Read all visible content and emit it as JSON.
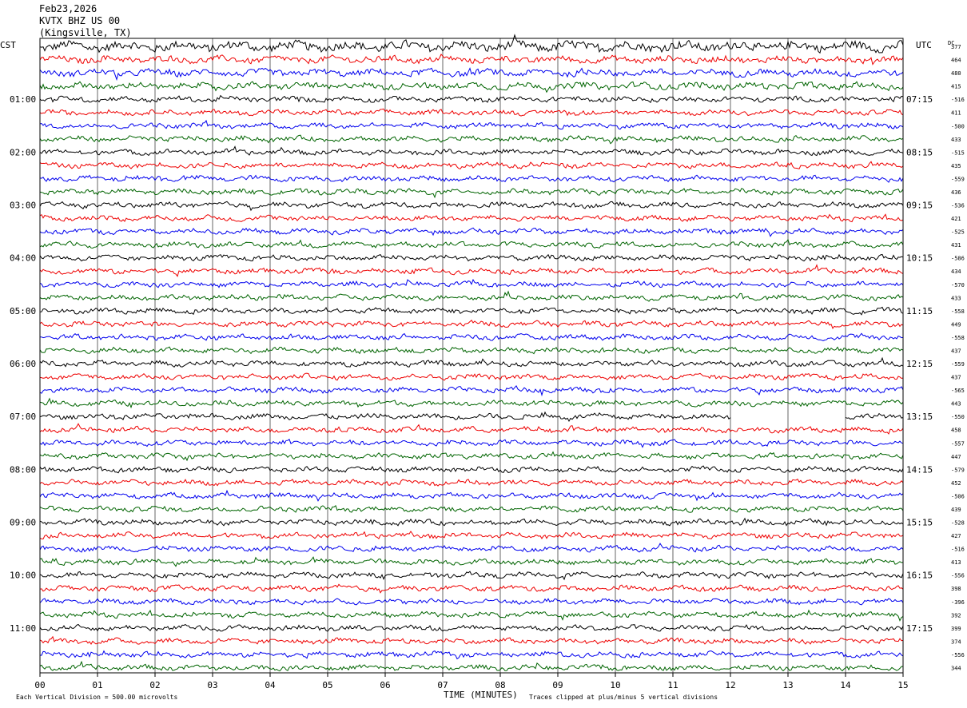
{
  "header": {
    "date": "Feb23,2026",
    "station": "KVTX BHZ US 00",
    "location": "(Kingsville, TX)"
  },
  "labels": {
    "left_tz": "CST",
    "right_tz": "UTC",
    "dc": "DC",
    "x_axis_title": "TIME (MINUTES)",
    "footer_left": "Each Vertical Division =  500.00 microvolts",
    "footer_right": "Traces clipped at plus/minus 5 vertical divisions"
  },
  "colors": {
    "trace_cycle": [
      "#000000",
      "#ee0000",
      "#0000ee",
      "#006400"
    ],
    "grid": "#000000"
  },
  "chart_data": {
    "type": "line",
    "title": "KVTX BHZ US 00",
    "xlabel": "TIME (MINUTES)",
    "xlim": [
      0,
      15
    ],
    "x_ticks": [
      "00",
      "01",
      "02",
      "03",
      "04",
      "05",
      "06",
      "07",
      "08",
      "09",
      "10",
      "11",
      "12",
      "13",
      "14",
      "15"
    ],
    "row_minutes": 15,
    "rows": 48,
    "left_hour_labels": [
      "01:00",
      "02:00",
      "03:00",
      "04:00",
      "05:00",
      "06:00",
      "07:00",
      "08:00",
      "09:00",
      "10:00",
      "11:00"
    ],
    "right_hour_labels": [
      "07:15",
      "08:15",
      "09:15",
      "10:15",
      "11:15",
      "12:15",
      "13:15",
      "14:15",
      "15:15",
      "16:15",
      "17:15"
    ],
    "dc_offsets": [
      "377",
      "464",
      "480",
      "415",
      "-516",
      "411",
      "-500",
      "433",
      "-515",
      "435",
      "-559",
      "436",
      "-536",
      "421",
      "-525",
      "431",
      "-586",
      "434",
      "-570",
      "433",
      "-558",
      "449",
      "-558",
      "437",
      "-559",
      "437",
      "-565",
      "443",
      "-550",
      "458",
      "-557",
      "447",
      "-579",
      "452",
      "-506",
      "439",
      "-528",
      "427",
      "-516",
      "413",
      "-556",
      "398",
      "-396",
      "392",
      "399",
      "374",
      "-556",
      "344"
    ],
    "data_gap": {
      "row": 28,
      "from_minute": 12.0,
      "to_minute": 14.0
    },
    "units_per_division_microvolts": 500.0,
    "clip_divisions": 5
  }
}
